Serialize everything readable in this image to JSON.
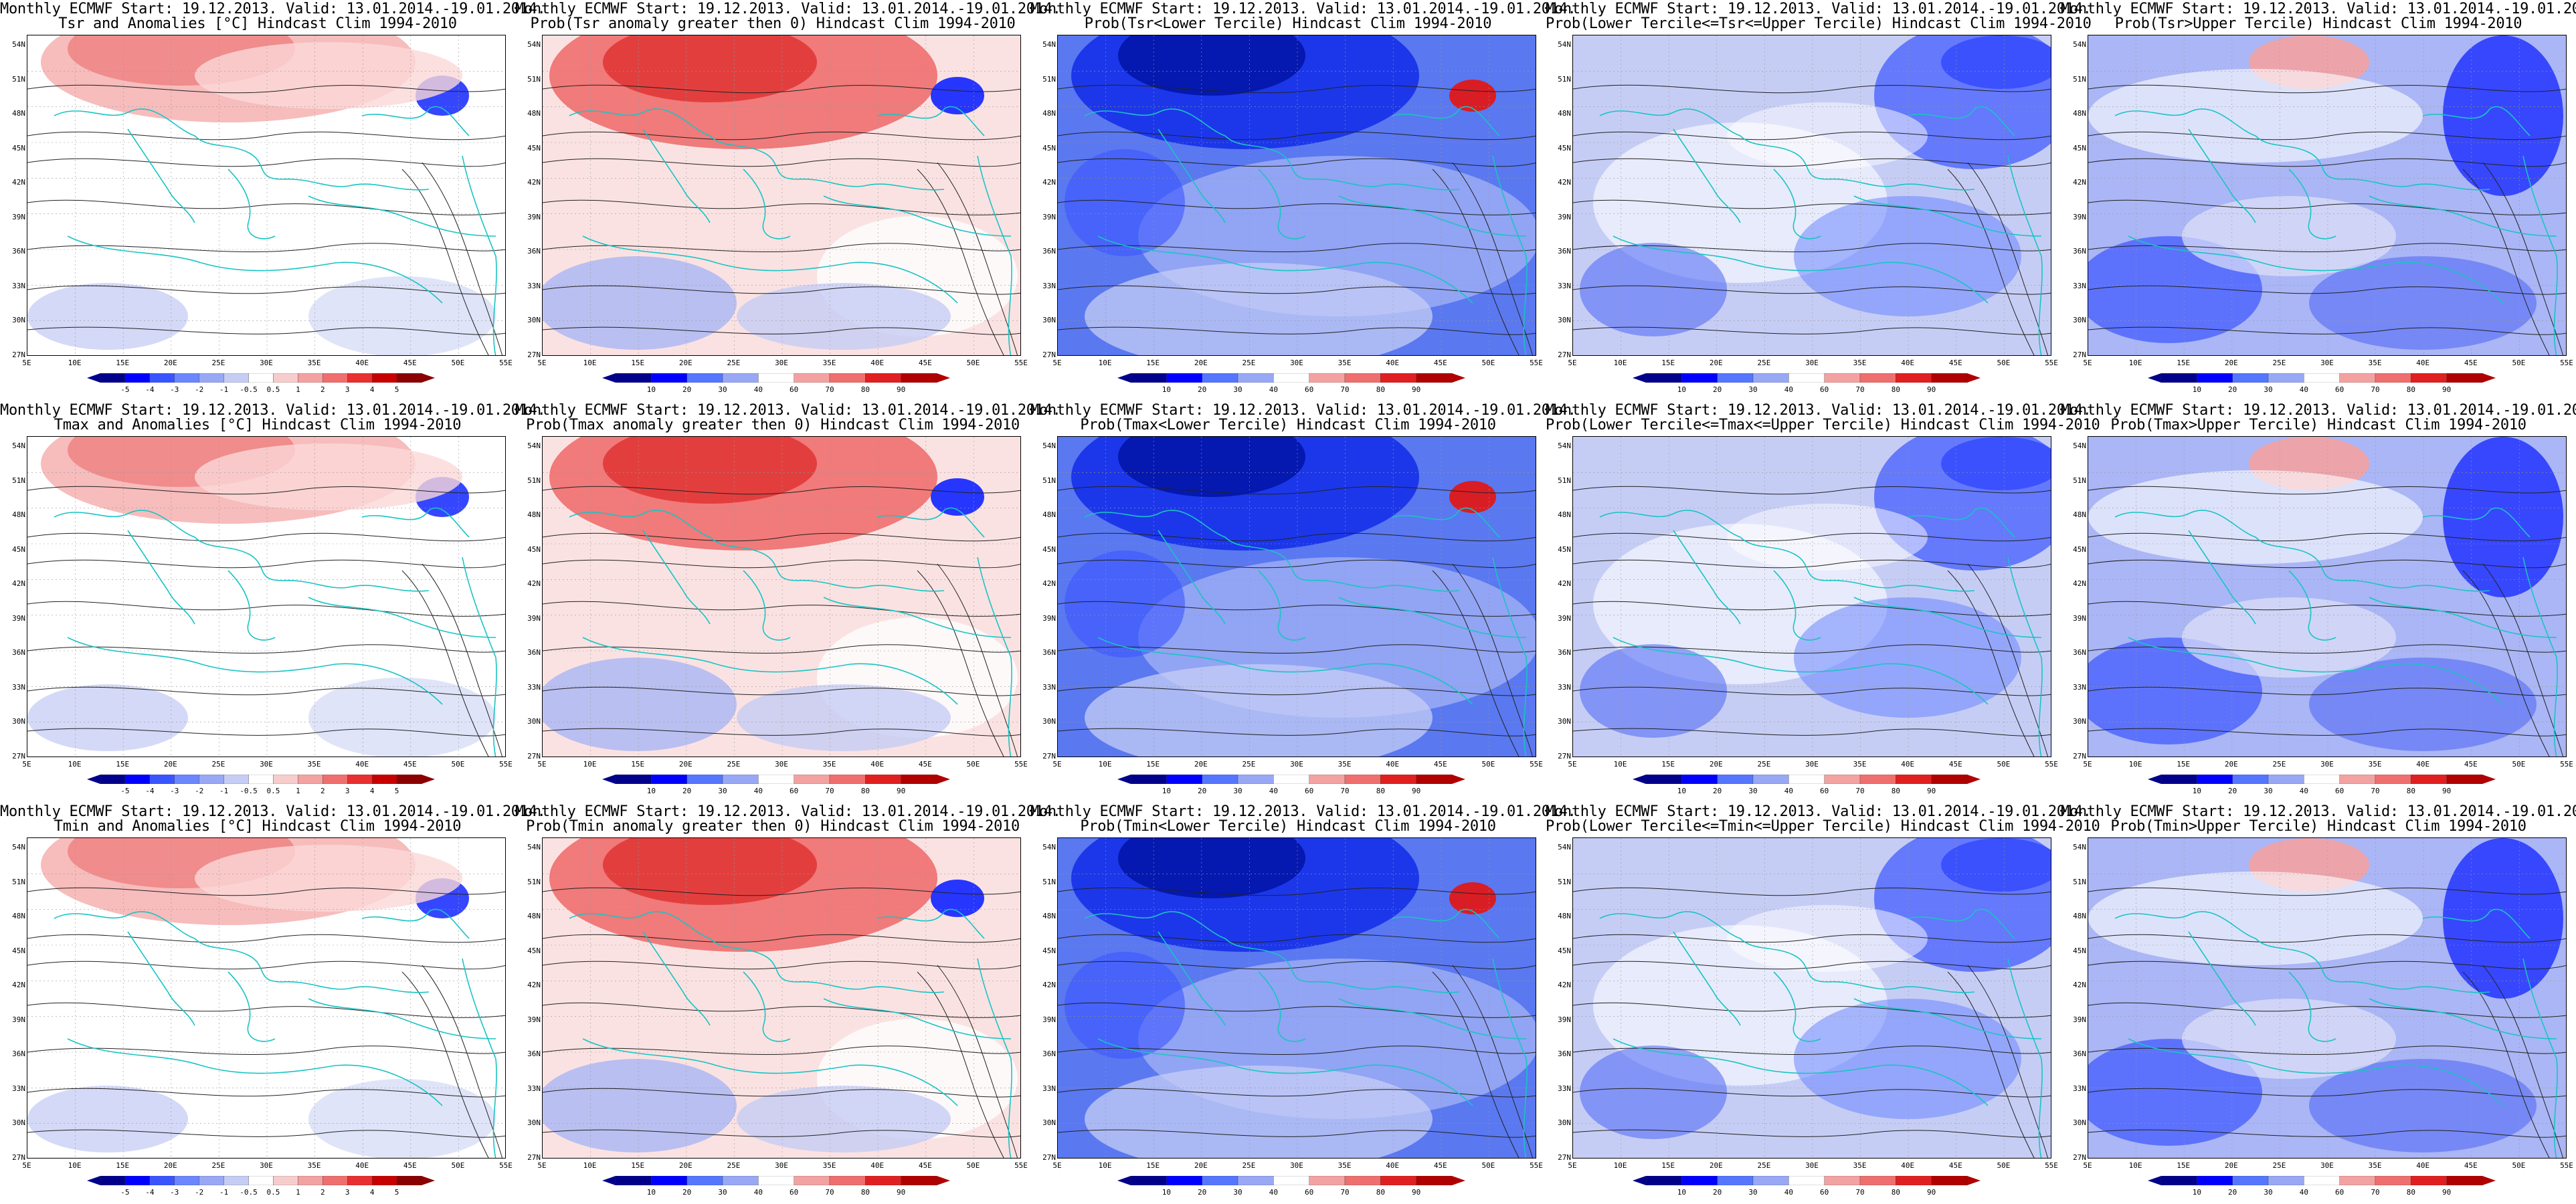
{
  "header_line1": "Monthly ECMWF Start: 19.12.2013. Valid: 13.01.2014.-19.01.2014.",
  "lat_ticks": [
    "54N",
    "51N",
    "48N",
    "45N",
    "42N",
    "39N",
    "36N",
    "33N",
    "30N",
    "27N"
  ],
  "lon_ticks": [
    "5E",
    "10E",
    "15E",
    "20E",
    "25E",
    "30E",
    "35E",
    "40E",
    "45E",
    "50E",
    "55E"
  ],
  "anom_colorbar": {
    "labels": [
      "-5",
      "-4",
      "-3",
      "-2",
      "-1",
      "-0.5",
      "0.5",
      "1",
      "2",
      "3",
      "4",
      "5"
    ],
    "colors": [
      "#00008b",
      "#0000ff",
      "#3a55ff",
      "#6b86ff",
      "#98a8f5",
      "#c6cdf5",
      "#ffffff",
      "#f7cccc",
      "#f3a2a2",
      "#ef6f6f",
      "#e83030",
      "#c80000",
      "#8b0000"
    ]
  },
  "prob_colorbar": {
    "labels": [
      "10",
      "20",
      "30",
      "40",
      "60",
      "70",
      "80",
      "90"
    ],
    "colors": [
      "#00008b",
      "#0000ff",
      "#5577ff",
      "#98a8f5",
      "#ffffff",
      "#f3a2a2",
      "#ef6f6f",
      "#e02020",
      "#b00000"
    ]
  },
  "rows": [
    {
      "variable": "Tsr",
      "titles": [
        "Tsr and Anomalies [°C] Hindcast Clim 1994-2010",
        "Prob(Tsr anomaly greater then 0) Hindcast Clim 1994-2010",
        "Prob(Tsr<Lower Tercile) Hindcast Clim 1994-2010",
        "Prob(Lower Tercile<=Tsr<=Upper Tercile) Hindcast Clim 1994-2010",
        "Prob(Tsr>Upper Tercile) Hindcast Clim 1994-2010"
      ]
    },
    {
      "variable": "Tmax",
      "titles": [
        "Tmax and Anomalies [°C] Hindcast Clim 1994-2010",
        "Prob(Tmax anomaly greater then 0) Hindcast Clim 1994-2010",
        "Prob(Tmax<Lower Tercile) Hindcast Clim 1994-2010",
        "Prob(Lower Tercile<=Tmax<=Upper Tercile) Hindcast Clim 1994-2010",
        "Prob(Tmax>Upper Tercile) Hindcast Clim 1994-2010"
      ]
    },
    {
      "variable": "Tmin",
      "titles": [
        "Tmin and Anomalies [°C] Hindcast Clim 1994-2010",
        "Prob(Tmin anomaly greater then 0) Hindcast Clim 1994-2010",
        "Prob(Tmin<Lower Tercile) Hindcast Clim 1994-2010",
        "Prob(Lower Tercile<=Tmin<=Upper Tercile) Hindcast Clim 1994-2010",
        "Prob(Tmin>Upper Tercile) Hindcast Clim 1994-2010"
      ]
    }
  ]
}
